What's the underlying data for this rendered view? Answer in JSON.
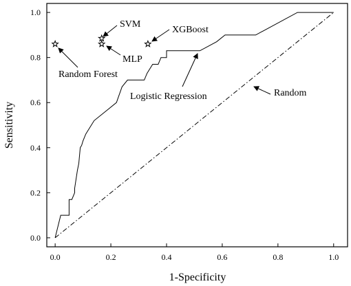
{
  "chart_data": {
    "type": "scatter",
    "title": "",
    "xlabel": "1-Specificity",
    "ylabel": "Sensitivity",
    "xlim": [
      -0.03,
      1.05
    ],
    "ylim": [
      -0.04,
      1.04
    ],
    "x_ticks": [
      0.0,
      0.2,
      0.4,
      0.6,
      0.8,
      1.0
    ],
    "y_ticks": [
      0.0,
      0.2,
      0.4,
      0.6,
      0.8,
      1.0
    ],
    "x_tick_labels": [
      "0.0",
      "0.2",
      "0.4",
      "0.6",
      "0.8",
      "1.0"
    ],
    "y_tick_labels": [
      "0.0",
      "0.2",
      "0.4",
      "0.6",
      "0.8",
      "1.0"
    ],
    "grid": false,
    "series": [
      {
        "name": "Logistic Regression",
        "style": "solid",
        "color": "#000000",
        "x": [
          0,
          0.02,
          0.05,
          0.05,
          0.06,
          0.07,
          0.07,
          0.08,
          0.085,
          0.09,
          0.095,
          0.1,
          0.11,
          0.14,
          0.19,
          0.22,
          0.24,
          0.26,
          0.32,
          0.33,
          0.35,
          0.37,
          0.38,
          0.4,
          0.4,
          0.41,
          0.52,
          0.58,
          0.61,
          0.72,
          0.87,
          1.0
        ],
        "y": [
          0,
          0.1,
          0.1,
          0.17,
          0.17,
          0.2,
          0.22,
          0.3,
          0.33,
          0.4,
          0.41,
          0.43,
          0.46,
          0.52,
          0.57,
          0.6,
          0.67,
          0.7,
          0.7,
          0.73,
          0.77,
          0.77,
          0.8,
          0.8,
          0.83,
          0.83,
          0.83,
          0.87,
          0.9,
          0.9,
          1.0,
          1.0
        ]
      },
      {
        "name": "Random",
        "style": "dash-dot",
        "color": "#000000",
        "x": [
          0,
          1
        ],
        "y": [
          0,
          1
        ]
      }
    ],
    "points": [
      {
        "name": "Random Forest",
        "x": 0.0,
        "y": 0.86
      },
      {
        "name": "SVM",
        "x": 0.167,
        "y": 0.885
      },
      {
        "name": "MLP",
        "x": 0.167,
        "y": 0.86
      },
      {
        "name": "XGBoost",
        "x": 0.333,
        "y": 0.86
      }
    ],
    "annotations": [
      {
        "text": "SVM"
      },
      {
        "text": "XGBoost"
      },
      {
        "text": "MLP"
      },
      {
        "text": "Random Forest"
      },
      {
        "text": "Logistic Regression"
      },
      {
        "text": "Random"
      }
    ]
  }
}
